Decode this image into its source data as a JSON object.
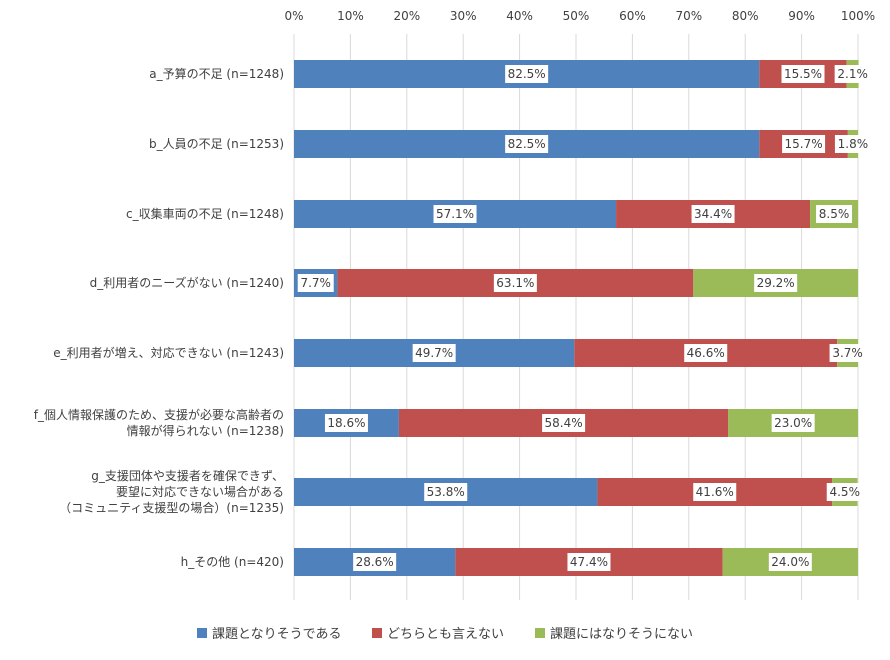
{
  "chart_data": {
    "type": "bar",
    "orientation": "horizontal",
    "stacked": "percent",
    "xlim": [
      0,
      100
    ],
    "x_ticks": [
      "0%",
      "10%",
      "20%",
      "30%",
      "40%",
      "50%",
      "60%",
      "70%",
      "80%",
      "90%",
      "100%"
    ],
    "grid": true,
    "legend_position": "bottom",
    "categories": [
      [
        "a_予算の不足 (n=1248)"
      ],
      [
        "b_人員の不足 (n=1253)"
      ],
      [
        "c_収集車両の不足 (n=1248)"
      ],
      [
        "d_利用者のニーズがない (n=1240)"
      ],
      [
        "e_利用者が増え、対応できない (n=1243)"
      ],
      [
        "f_個人情報保護のため、支援が必要な高齢者の",
        "情報が得られない (n=1238)"
      ],
      [
        "g_支援団体や支援者を確保できず、",
        "要望に対応できない場合がある",
        "（コミュニティ支援型の場合）(n=1235)"
      ],
      [
        "h_その他 (n=420)"
      ]
    ],
    "series": [
      {
        "name": "課題となりそうである",
        "color": "#4f81bd",
        "values": [
          82.5,
          82.5,
          57.1,
          7.7,
          49.7,
          18.6,
          53.8,
          28.6
        ],
        "labels": [
          "82.5%",
          "82.5%",
          "57.1%",
          "7.7%",
          "49.7%",
          "18.6%",
          "53.8%",
          "28.6%"
        ]
      },
      {
        "name": "どちらとも言えない",
        "color": "#c0504d",
        "values": [
          15.5,
          15.7,
          34.4,
          63.1,
          46.6,
          58.4,
          41.6,
          47.4
        ],
        "labels": [
          "15.5%",
          "15.7%",
          "34.4%",
          "63.1%",
          "46.6%",
          "58.4%",
          "41.6%",
          "47.4%"
        ]
      },
      {
        "name": "課題にはなりそうにない",
        "color": "#9bbb59",
        "values": [
          2.1,
          1.8,
          8.5,
          29.2,
          3.7,
          23.0,
          4.5,
          24.0
        ],
        "labels": [
          "2.1%",
          "1.8%",
          "8.5%",
          "29.2%",
          "3.7%",
          "23.0%",
          "4.5%",
          "24.0%"
        ]
      }
    ]
  }
}
